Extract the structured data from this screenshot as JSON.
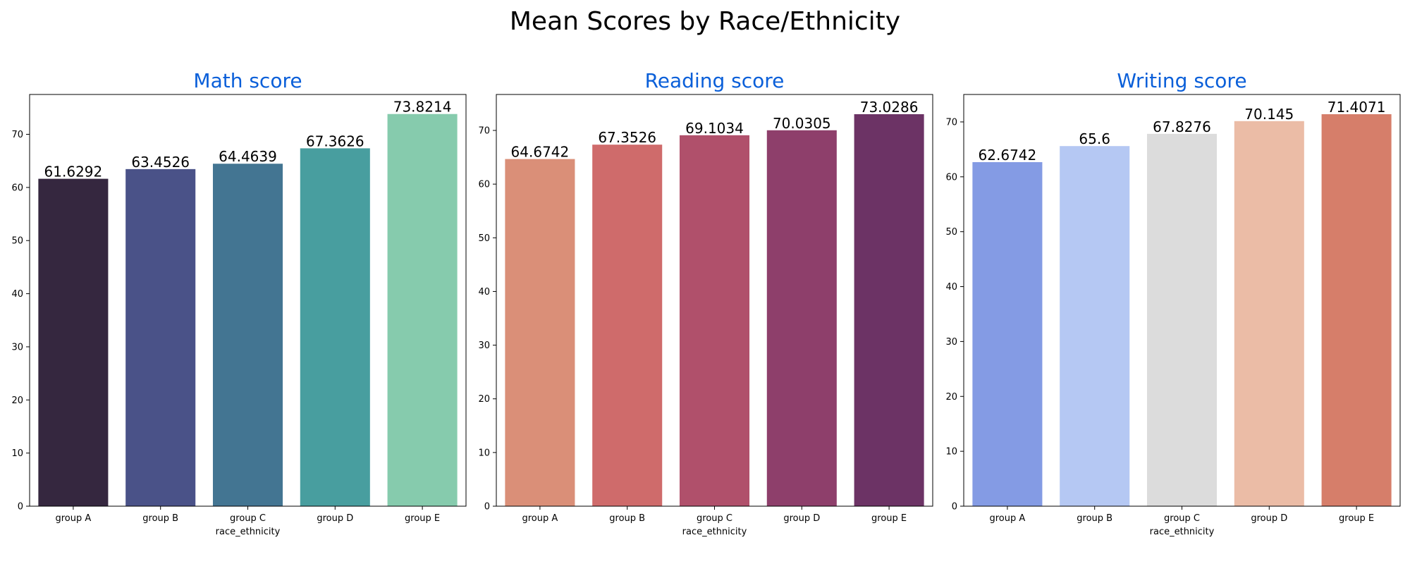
{
  "figure_title": "Mean Scores by Race/Ethnicity",
  "title_color": "#0a5fd9",
  "chart_data": [
    {
      "type": "bar",
      "title": "Math score",
      "categories": [
        "group A",
        "group B",
        "group C",
        "group D",
        "group E"
      ],
      "values": [
        61.6292,
        63.4526,
        64.4639,
        67.3626,
        73.8214
      ],
      "labels": [
        "61.6292",
        "63.4526",
        "64.4639",
        "67.3626",
        "73.8214"
      ],
      "colors": [
        "#35273f",
        "#4a5288",
        "#437592",
        "#489e9f",
        "#86cbad"
      ],
      "xlabel": "race_ethnicity",
      "ylabel": "",
      "ylim": [
        0,
        77.5
      ],
      "yticks": [
        0,
        10,
        20,
        30,
        40,
        50,
        60,
        70
      ],
      "grid": false
    },
    {
      "type": "bar",
      "title": "Reading score",
      "categories": [
        "group A",
        "group B",
        "group C",
        "group D",
        "group E"
      ],
      "values": [
        64.6742,
        67.3526,
        69.1034,
        70.0305,
        73.0286
      ],
      "labels": [
        "64.6742",
        "67.3526",
        "69.1034",
        "70.0305",
        "73.0286"
      ],
      "colors": [
        "#da8f78",
        "#cf6b6b",
        "#b0506b",
        "#8e3f6b",
        "#6c3365"
      ],
      "xlabel": "race_ethnicity",
      "ylabel": "",
      "ylim": [
        0,
        76.7
      ],
      "yticks": [
        0,
        10,
        20,
        30,
        40,
        50,
        60,
        70
      ],
      "grid": false
    },
    {
      "type": "bar",
      "title": "Writing score",
      "categories": [
        "group A",
        "group B",
        "group C",
        "group D",
        "group E"
      ],
      "values": [
        62.6742,
        65.6,
        67.8276,
        70.145,
        71.4071
      ],
      "labels": [
        "62.6742",
        "65.6",
        "67.8276",
        "70.145",
        "71.4071"
      ],
      "colors": [
        "#849be4",
        "#b5c8f3",
        "#dcdcdc",
        "#ebbca6",
        "#d67e6a"
      ],
      "xlabel": "race_ethnicity",
      "ylabel": "",
      "ylim": [
        0,
        75.0
      ],
      "yticks": [
        0,
        10,
        20,
        30,
        40,
        50,
        60,
        70
      ],
      "grid": false
    }
  ]
}
